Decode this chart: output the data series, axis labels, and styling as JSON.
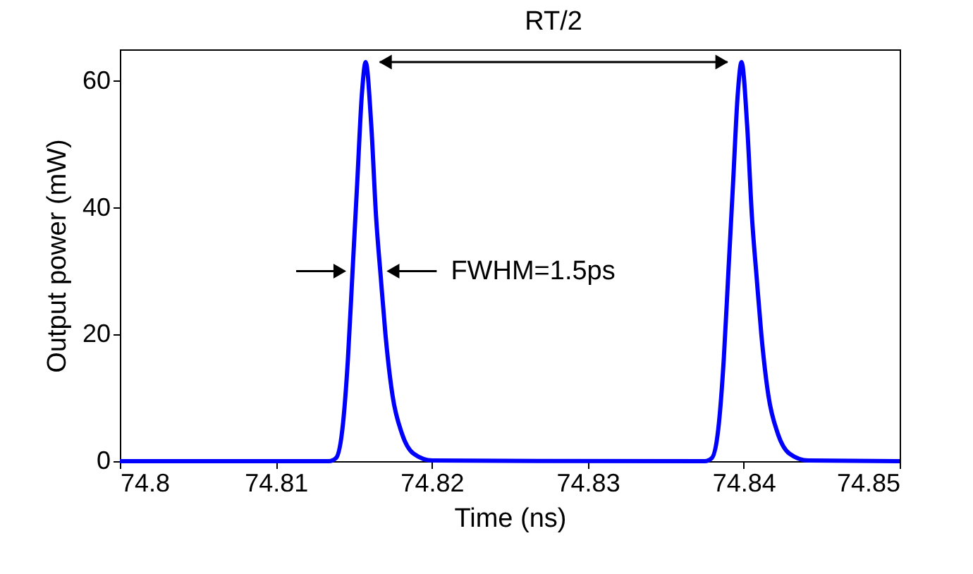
{
  "chart_data": {
    "type": "line",
    "xlabel": "Time (ns)",
    "ylabel": "Output power (mW)",
    "xlim": [
      74.8,
      74.85
    ],
    "ylim": [
      0,
      65
    ],
    "xticks": [
      74.8,
      74.81,
      74.82,
      74.83,
      74.84,
      74.85
    ],
    "yticks": [
      0,
      20,
      40,
      60
    ],
    "series": [
      {
        "color": "#0000ff",
        "x": [
          74.8,
          74.81341,
          74.81386,
          74.81431,
          74.81462,
          74.81492,
          74.81522,
          74.81552,
          74.81576,
          74.81612,
          74.81643,
          74.81673,
          74.81703,
          74.81748,
          74.81808,
          74.81883,
          74.82005,
          74.83751,
          74.83796,
          74.83841,
          74.83872,
          74.83902,
          74.83932,
          74.83962,
          74.83986,
          74.84022,
          74.84053,
          74.84083,
          74.84113,
          74.84158,
          74.84218,
          74.84293,
          74.84415,
          74.85
        ],
        "values": [
          0,
          0,
          0.5,
          6,
          16,
          30,
          44,
          58,
          63,
          53,
          38.5,
          29,
          20,
          10.4,
          4.4,
          1.2,
          0.1,
          0,
          0.5,
          6,
          16,
          30,
          44,
          58,
          63,
          53,
          38.5,
          29,
          20,
          10.4,
          4.4,
          1.2,
          0.1,
          0
        ]
      }
    ],
    "annotations": [
      "RT/2",
      {
        "text": "FWHM=1.5ps",
        "x": 74.8167,
        "y": 30
      }
    ]
  }
}
